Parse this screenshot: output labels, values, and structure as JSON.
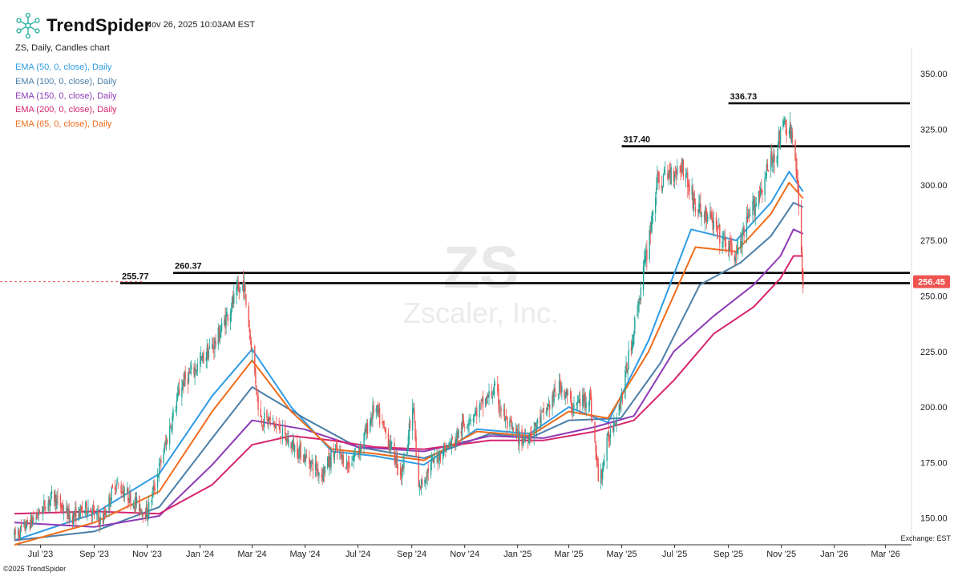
{
  "header": {
    "brand": "TrendSpider",
    "timestamp": "Nov 26, 2025 10:03AM EST",
    "symbol_line": "ZS, Daily, Candles chart"
  },
  "watermark": {
    "ticker": "ZS",
    "company": "Zscaler, Inc."
  },
  "footer": {
    "exchange": "Exchange: EST",
    "copyright": "©2025 TrendSpider"
  },
  "colors": {
    "up": "#26a69a",
    "down": "#ef5350",
    "ema50": "#2e9be6",
    "ema100": "#4a7fa8",
    "ema150": "#8e3bb8",
    "ema200": "#d6246e",
    "ema65": "#ef6c1a",
    "last": "#ef5350"
  },
  "chart_data": {
    "type": "candlestick",
    "title": "ZS, Daily, Candles chart",
    "y_axis": {
      "side": "right",
      "ticks": [
        150,
        175,
        200,
        225,
        250,
        275,
        300,
        325,
        350
      ],
      "range": [
        138,
        358
      ]
    },
    "x_axis": {
      "ticks": [
        "Jul '23",
        "Sep '23",
        "Nov '23",
        "Jan '24",
        "Mar '24",
        "May '24",
        "Jul '24",
        "Sep '24",
        "Nov '24",
        "Jan '25",
        "Mar '25",
        "May '25",
        "Jul '25",
        "Sep '25",
        "Nov '25",
        "Jan '26",
        "Mar '26"
      ],
      "range": [
        "2023-06-01",
        "2026-03-31"
      ]
    },
    "last_price": {
      "value": 256.45,
      "label": "256.45"
    },
    "horizontal_levels": [
      {
        "value": 336.73,
        "label": "336.73",
        "start": "2025-09-01"
      },
      {
        "value": 317.4,
        "label": "317.40",
        "start": "2025-05-01"
      },
      {
        "value": 260.37,
        "label": "260.37",
        "start": "2023-12-01"
      },
      {
        "value": 255.77,
        "label": "255.77",
        "start": "2023-10-01"
      }
    ],
    "price_path": [
      [
        "2023-06-01",
        142
      ],
      [
        "2023-06-25",
        150
      ],
      [
        "2023-07-15",
        160
      ],
      [
        "2023-08-05",
        150
      ],
      [
        "2023-08-25",
        155
      ],
      [
        "2023-09-10",
        148
      ],
      [
        "2023-09-25",
        166
      ],
      [
        "2023-10-15",
        158
      ],
      [
        "2023-11-01",
        152
      ],
      [
        "2023-11-20",
        180
      ],
      [
        "2023-12-10",
        210
      ],
      [
        "2024-01-01",
        220
      ],
      [
        "2024-01-20",
        230
      ],
      [
        "2024-02-05",
        245
      ],
      [
        "2024-02-20",
        256
      ],
      [
        "2024-03-01",
        225
      ],
      [
        "2024-03-10",
        195
      ],
      [
        "2024-03-25",
        193
      ],
      [
        "2024-04-10",
        185
      ],
      [
        "2024-04-30",
        178
      ],
      [
        "2024-05-20",
        170
      ],
      [
        "2024-06-05",
        180
      ],
      [
        "2024-06-20",
        174
      ],
      [
        "2024-07-05",
        183
      ],
      [
        "2024-07-20",
        200
      ],
      [
        "2024-08-05",
        185
      ],
      [
        "2024-08-20",
        170
      ],
      [
        "2024-09-03",
        200
      ],
      [
        "2024-09-08",
        162
      ],
      [
        "2024-09-20",
        172
      ],
      [
        "2024-10-05",
        180
      ],
      [
        "2024-10-20",
        185
      ],
      [
        "2024-11-05",
        195
      ],
      [
        "2024-11-20",
        200
      ],
      [
        "2024-12-05",
        208
      ],
      [
        "2024-12-20",
        192
      ],
      [
        "2025-01-05",
        185
      ],
      [
        "2025-01-20",
        190
      ],
      [
        "2025-02-05",
        200
      ],
      [
        "2025-02-20",
        210
      ],
      [
        "2025-03-05",
        200
      ],
      [
        "2025-03-25",
        205
      ],
      [
        "2025-04-05",
        165
      ],
      [
        "2025-04-15",
        185
      ],
      [
        "2025-05-01",
        205
      ],
      [
        "2025-05-15",
        235
      ],
      [
        "2025-05-30",
        270
      ],
      [
        "2025-06-10",
        300
      ],
      [
        "2025-06-25",
        305
      ],
      [
        "2025-07-10",
        309
      ],
      [
        "2025-07-25",
        290
      ],
      [
        "2025-08-10",
        285
      ],
      [
        "2025-08-25",
        275
      ],
      [
        "2025-09-10",
        268
      ],
      [
        "2025-09-25",
        285
      ],
      [
        "2025-10-10",
        300
      ],
      [
        "2025-10-25",
        315
      ],
      [
        "2025-11-05",
        328
      ],
      [
        "2025-11-15",
        320
      ],
      [
        "2025-11-21",
        290
      ],
      [
        "2025-11-26",
        256.45
      ]
    ],
    "ema_series": [
      {
        "name": "EMA (50, 0, close), Daily",
        "color": "#2e9be6",
        "points": [
          [
            "2023-06-01",
            140
          ],
          [
            "2023-09-01",
            152
          ],
          [
            "2023-11-15",
            170
          ],
          [
            "2024-01-15",
            205
          ],
          [
            "2024-03-01",
            226
          ],
          [
            "2024-04-15",
            200
          ],
          [
            "2024-06-01",
            180
          ],
          [
            "2024-07-20",
            178
          ],
          [
            "2024-09-15",
            174
          ],
          [
            "2024-11-15",
            190
          ],
          [
            "2025-01-15",
            188
          ],
          [
            "2025-03-01",
            200
          ],
          [
            "2025-04-15",
            193
          ],
          [
            "2025-06-01",
            230
          ],
          [
            "2025-07-20",
            280
          ],
          [
            "2025-09-10",
            275
          ],
          [
            "2025-10-20",
            292
          ],
          [
            "2025-11-10",
            306
          ],
          [
            "2025-11-26",
            297
          ]
        ]
      },
      {
        "name": "EMA (100, 0, close), Daily",
        "color": "#4a7fa8",
        "points": [
          [
            "2023-06-01",
            140
          ],
          [
            "2023-09-01",
            144
          ],
          [
            "2023-11-15",
            155
          ],
          [
            "2024-01-15",
            186
          ],
          [
            "2024-03-01",
            209
          ],
          [
            "2024-04-30",
            195
          ],
          [
            "2024-06-30",
            182
          ],
          [
            "2024-09-15",
            177
          ],
          [
            "2024-11-30",
            188
          ],
          [
            "2025-01-15",
            186
          ],
          [
            "2025-03-01",
            194
          ],
          [
            "2025-04-30",
            195
          ],
          [
            "2025-06-15",
            220
          ],
          [
            "2025-07-30",
            255
          ],
          [
            "2025-09-15",
            265
          ],
          [
            "2025-10-20",
            277
          ],
          [
            "2025-11-15",
            292
          ],
          [
            "2025-11-26",
            290
          ]
        ]
      },
      {
        "name": "EMA (150, 0, close), Daily",
        "color": "#8e3bb8",
        "points": [
          [
            "2023-06-01",
            148
          ],
          [
            "2023-09-01",
            146
          ],
          [
            "2023-11-15",
            151
          ],
          [
            "2024-01-15",
            174
          ],
          [
            "2024-03-01",
            194
          ],
          [
            "2024-04-30",
            190
          ],
          [
            "2024-07-01",
            182
          ],
          [
            "2024-09-15",
            180
          ],
          [
            "2024-11-30",
            187
          ],
          [
            "2025-01-31",
            186
          ],
          [
            "2025-03-31",
            191
          ],
          [
            "2025-05-15",
            196
          ],
          [
            "2025-06-30",
            225
          ],
          [
            "2025-08-15",
            241
          ],
          [
            "2025-09-30",
            255
          ],
          [
            "2025-10-31",
            268
          ],
          [
            "2025-11-15",
            280
          ],
          [
            "2025-11-26",
            278
          ]
        ]
      },
      {
        "name": "EMA (200, 0, close), Daily",
        "color": "#d6246e",
        "points": [
          [
            "2023-06-01",
            152
          ],
          [
            "2023-09-01",
            153
          ],
          [
            "2023-11-15",
            152
          ],
          [
            "2024-01-15",
            165
          ],
          [
            "2024-03-01",
            183
          ],
          [
            "2024-04-15",
            187
          ],
          [
            "2024-06-01",
            185
          ],
          [
            "2024-07-20",
            182
          ],
          [
            "2024-09-15",
            181
          ],
          [
            "2024-11-30",
            185
          ],
          [
            "2025-01-31",
            185
          ],
          [
            "2025-03-31",
            189
          ],
          [
            "2025-05-15",
            194
          ],
          [
            "2025-06-30",
            212
          ],
          [
            "2025-08-15",
            233
          ],
          [
            "2025-09-30",
            245
          ],
          [
            "2025-10-31",
            258
          ],
          [
            "2025-11-15",
            268
          ],
          [
            "2025-11-26",
            268
          ]
        ]
      },
      {
        "name": "EMA (65, 0, close), Daily",
        "color": "#ef6c1a",
        "points": [
          [
            "2023-06-01",
            138
          ],
          [
            "2023-09-01",
            148
          ],
          [
            "2023-11-15",
            162
          ],
          [
            "2024-01-15",
            198
          ],
          [
            "2024-03-01",
            221
          ],
          [
            "2024-04-15",
            198
          ],
          [
            "2024-06-01",
            181
          ],
          [
            "2024-07-20",
            179
          ],
          [
            "2024-09-15",
            176
          ],
          [
            "2024-11-15",
            189
          ],
          [
            "2025-01-15",
            187
          ],
          [
            "2025-03-01",
            198
          ],
          [
            "2025-04-15",
            195
          ],
          [
            "2025-06-01",
            225
          ],
          [
            "2025-07-25",
            272
          ],
          [
            "2025-09-10",
            270
          ],
          [
            "2025-10-20",
            287
          ],
          [
            "2025-11-10",
            301
          ],
          [
            "2025-11-26",
            294
          ]
        ]
      }
    ]
  }
}
